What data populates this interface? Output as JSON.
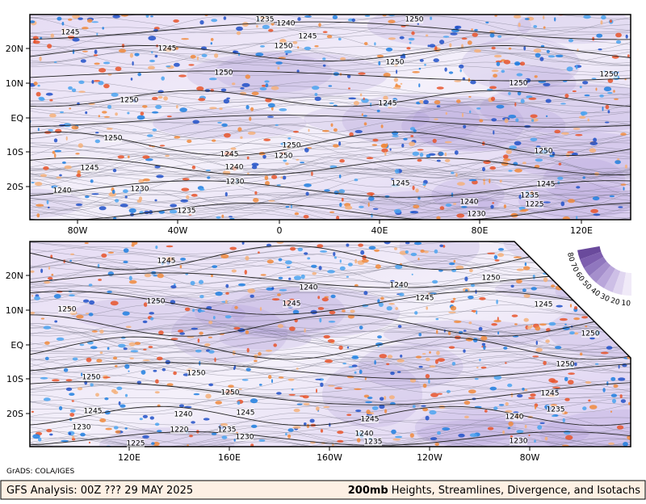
{
  "panels": [
    {
      "lat_labels": [
        "20N",
        "10N",
        "EQ",
        "10S",
        "20S"
      ],
      "lon_labels": [
        "80W",
        "40W",
        "0",
        "40E",
        "80E",
        "120E"
      ],
      "contour_labels": [
        1245,
        1235,
        1240,
        1250,
        1245,
        1245,
        1250,
        1250,
        1250,
        1250,
        1250,
        1250,
        1245,
        1250,
        1250,
        1245,
        1250,
        1250,
        1245,
        1240,
        1230,
        1245,
        1245,
        1240,
        1230,
        1240,
        1235,
        1225,
        1235,
        1230
      ]
    },
    {
      "lat_labels": [
        "20N",
        "10N",
        "EQ",
        "10S",
        "20S"
      ],
      "lon_labels": [
        "120E",
        "160E",
        "160W",
        "120W",
        "80W"
      ],
      "contour_labels": [
        1245,
        1250,
        1240,
        1240,
        1245,
        1250,
        1245,
        1245,
        1250,
        1250,
        1250,
        1250,
        1250,
        1250,
        1245,
        1245,
        1240,
        1245,
        1245,
        1235,
        1240,
        1230,
        1220,
        1235,
        1230,
        1240,
        1235,
        1230,
        1225
      ]
    }
  ],
  "legend": {
    "ticks": [
      80,
      70,
      60,
      50,
      40,
      30,
      20,
      10
    ]
  },
  "credit": "GrADS: COLA/IGES",
  "footer": {
    "left": "GFS Analysis: 00Z ??? 29 MAY 2025",
    "level": "200mb",
    "right": "Heights, Streamlines, Divergence, and Isotachs"
  }
}
